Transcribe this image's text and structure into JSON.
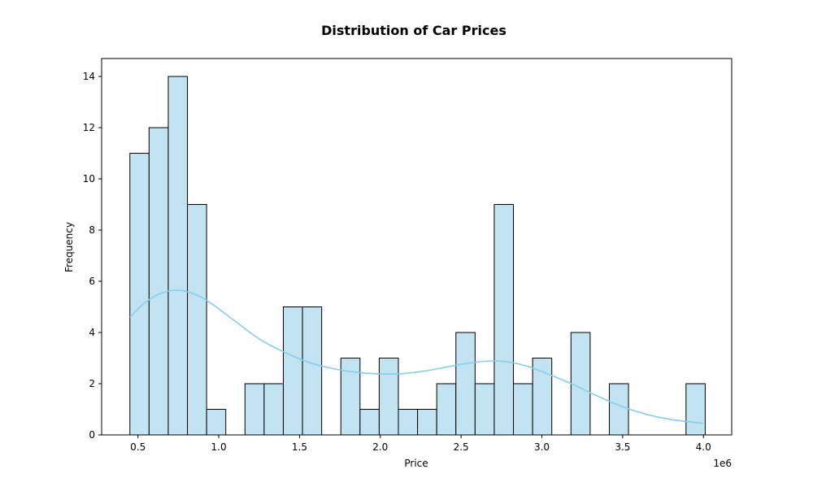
{
  "chart_data": {
    "type": "bar",
    "title": "Distribution of Car Prices",
    "xlabel": "Price",
    "ylabel": "Frequency",
    "x_offset_label": "1e6",
    "xlim": [
      0.275,
      4.175
    ],
    "ylim": [
      0,
      14.7
    ],
    "x_ticks": [
      0.5,
      1.0,
      1.5,
      2.0,
      2.5,
      3.0,
      3.5,
      4.0
    ],
    "x_tick_labels": [
      "0.5",
      "1.0",
      "1.5",
      "2.0",
      "2.5",
      "3.0",
      "3.5",
      "4.0"
    ],
    "y_ticks": [
      0,
      2,
      4,
      6,
      8,
      10,
      12,
      14
    ],
    "y_tick_labels": [
      "0",
      "2",
      "4",
      "6",
      "8",
      "10",
      "12",
      "14"
    ],
    "bin_edges": [
      0.45,
      0.5687,
      0.6874,
      0.8061,
      0.9248,
      1.0435,
      1.1622,
      1.2809,
      1.3996,
      1.5183,
      1.637,
      1.7557,
      1.8744,
      1.9931,
      2.1118,
      2.2305,
      2.3492,
      2.4679,
      2.5866,
      2.7053,
      2.824,
      2.9427,
      3.0614,
      3.1801,
      3.2988,
      3.4175,
      3.5362,
      3.6549,
      3.7736,
      3.8923,
      4.011
    ],
    "counts": [
      11,
      12,
      14,
      9,
      1,
      0,
      2,
      2,
      5,
      5,
      0,
      3,
      1,
      3,
      1,
      1,
      2,
      4,
      2,
      9,
      2,
      3,
      0,
      4,
      0,
      2,
      0,
      0,
      0,
      2
    ],
    "kde": {
      "x": [
        0.45,
        0.55,
        0.65,
        0.75,
        0.85,
        0.95,
        1.1,
        1.25,
        1.4,
        1.55,
        1.7,
        1.85,
        2.0,
        2.15,
        2.3,
        2.45,
        2.6,
        2.75,
        2.9,
        3.05,
        3.2,
        3.35,
        3.5,
        3.65,
        3.8,
        4.0
      ],
      "y": [
        4.6,
        5.2,
        5.55,
        5.65,
        5.5,
        5.15,
        4.45,
        3.75,
        3.25,
        2.85,
        2.6,
        2.45,
        2.38,
        2.4,
        2.52,
        2.7,
        2.85,
        2.88,
        2.7,
        2.35,
        1.95,
        1.5,
        1.1,
        0.8,
        0.6,
        0.45
      ]
    },
    "grid": false,
    "legend": "none",
    "colors": {
      "bar_fill": "#c2e4f2",
      "bar_edge": "#000000",
      "kde_line": "#87ceeb",
      "axes": "#000000",
      "background": "#ffffff"
    }
  }
}
